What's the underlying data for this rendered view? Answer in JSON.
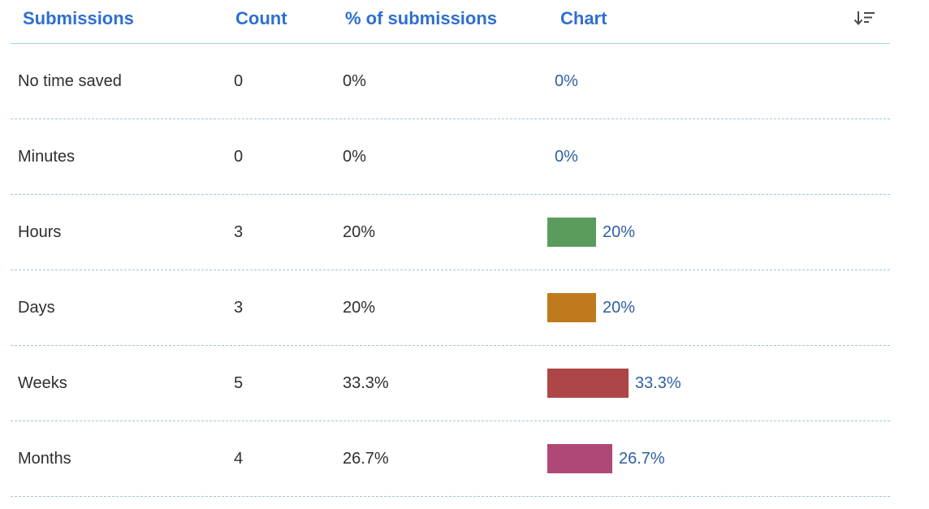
{
  "header": {
    "submissions": "Submissions",
    "count": "Count",
    "percent": "% of submissions",
    "chart": "Chart",
    "sort_icon": "sort-descending-icon"
  },
  "colors": {
    "header_text": "#2f6fd0",
    "chart_label": "#2f5fa0",
    "hours": "#5b9b5d",
    "days": "#c07a1e",
    "weeks": "#ad4647",
    "months": "#b04876"
  },
  "rows": [
    {
      "label": "No time saved",
      "count": "0",
      "percent": "0%",
      "chart_label": "0%",
      "fraction": 0,
      "color": "#5b9b5d"
    },
    {
      "label": "Minutes",
      "count": "0",
      "percent": "0%",
      "chart_label": "0%",
      "fraction": 0,
      "color": "#5b9b5d"
    },
    {
      "label": "Hours",
      "count": "3",
      "percent": "20%",
      "chart_label": "20%",
      "fraction": 0.2,
      "color": "#5b9b5d"
    },
    {
      "label": "Days",
      "count": "3",
      "percent": "20%",
      "chart_label": "20%",
      "fraction": 0.2,
      "color": "#c07a1e"
    },
    {
      "label": "Weeks",
      "count": "5",
      "percent": "33.3%",
      "chart_label": "33.3%",
      "fraction": 0.333,
      "color": "#ad4647"
    },
    {
      "label": "Months",
      "count": "4",
      "percent": "26.7%",
      "chart_label": "26.7%",
      "fraction": 0.267,
      "color": "#b04876"
    }
  ]
}
